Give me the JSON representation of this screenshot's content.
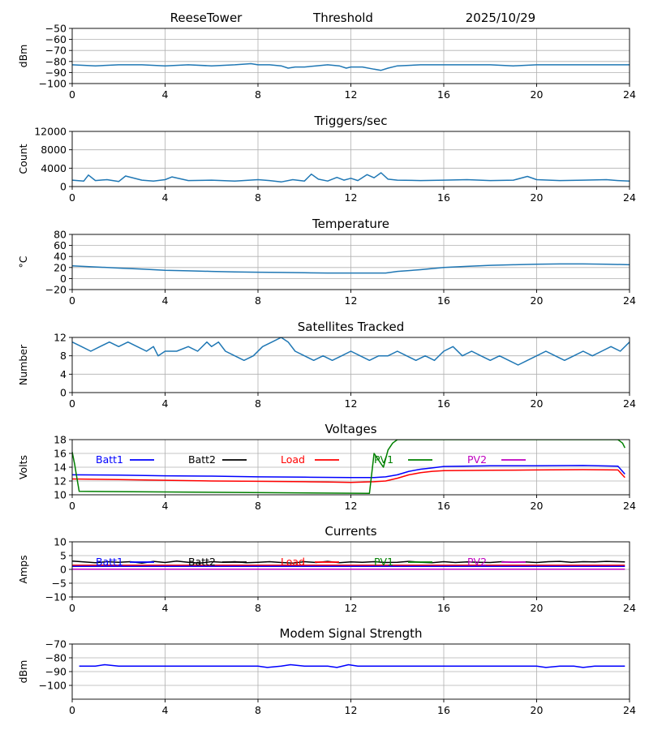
{
  "header": {
    "station": "ReeseTower",
    "mode": "Threshold",
    "date": "2025/10/29"
  },
  "chart_data": [
    {
      "type": "line",
      "title": "Threshold",
      "ylabel": "dBm",
      "xlim": [
        0,
        24
      ],
      "xticks": [
        "0",
        "4",
        "8",
        "12",
        "16",
        "20",
        "24"
      ],
      "ylim": [
        -100,
        -50
      ],
      "yticks": [
        "−100",
        "−90",
        "−80",
        "−70",
        "−60",
        "−50"
      ],
      "ytick_values": [
        -100,
        -90,
        -80,
        -70,
        -60,
        -50
      ],
      "grid": true,
      "series": [
        {
          "name": "threshold",
          "color": "#1f77b4",
          "x": [
            0,
            1,
            2,
            3,
            4,
            5,
            6,
            7,
            7.7,
            8,
            8.5,
            9,
            9.3,
            9.6,
            10,
            10.5,
            11,
            11.5,
            11.8,
            12,
            12.5,
            13,
            13.3,
            13.6,
            14,
            15,
            16,
            17,
            18,
            19,
            20,
            21,
            22,
            23,
            24
          ],
          "y": [
            -83,
            -84,
            -83,
            -83,
            -84,
            -83,
            -84,
            -83,
            -82,
            -83,
            -83,
            -84,
            -86,
            -85,
            -85,
            -84,
            -83,
            -84,
            -86,
            -85,
            -85,
            -87,
            -88,
            -86,
            -84,
            -83,
            -83,
            -83,
            -83,
            -84,
            -83,
            -83,
            -83,
            -83,
            -83
          ]
        }
      ]
    },
    {
      "type": "line",
      "title": "Triggers/sec",
      "ylabel": "Count",
      "xlim": [
        0,
        24
      ],
      "xticks": [
        "0",
        "4",
        "8",
        "12",
        "16",
        "20",
        "24"
      ],
      "ylim": [
        0,
        12000
      ],
      "yticks": [
        "0",
        "4000",
        "8000",
        "12000"
      ],
      "ytick_values": [
        0,
        4000,
        8000,
        12000
      ],
      "grid": true,
      "series": [
        {
          "name": "triggers",
          "color": "#1f77b4",
          "x": [
            0,
            0.5,
            0.7,
            1,
            1.5,
            2,
            2.3,
            3,
            3.5,
            4,
            4.3,
            5,
            6,
            7,
            8,
            8.5,
            9,
            9.5,
            10,
            10.3,
            10.6,
            11,
            11.4,
            11.7,
            12,
            12.3,
            12.7,
            13,
            13.3,
            13.6,
            14,
            15,
            16,
            17,
            18,
            19,
            19.6,
            20,
            21,
            22,
            23,
            23.5,
            24
          ],
          "y": [
            1400,
            1200,
            2500,
            1300,
            1500,
            1100,
            2300,
            1400,
            1200,
            1500,
            2100,
            1300,
            1400,
            1200,
            1500,
            1300,
            1000,
            1500,
            1200,
            2700,
            1600,
            1200,
            2000,
            1400,
            1800,
            1300,
            2600,
            1900,
            3000,
            1600,
            1400,
            1300,
            1400,
            1500,
            1300,
            1400,
            2200,
            1500,
            1300,
            1400,
            1500,
            1300,
            1200
          ]
        }
      ]
    },
    {
      "type": "line",
      "title": "Temperature",
      "ylabel": "°C",
      "xlim": [
        0,
        24
      ],
      "xticks": [
        "0",
        "4",
        "8",
        "12",
        "16",
        "20",
        "24"
      ],
      "ylim": [
        -20,
        80
      ],
      "yticks": [
        "−20",
        "0",
        "20",
        "40",
        "60",
        "80"
      ],
      "ytick_values": [
        -20,
        0,
        20,
        40,
        60,
        80
      ],
      "grid": true,
      "series": [
        {
          "name": "temperature",
          "color": "#1f77b4",
          "x": [
            0,
            1,
            2,
            3,
            4,
            5,
            6,
            7,
            8,
            9,
            10,
            11,
            12,
            13,
            13.5,
            14,
            15,
            16,
            17,
            18,
            19,
            20,
            21,
            22,
            23,
            24
          ],
          "y": [
            23,
            21,
            19,
            17,
            15,
            14,
            13,
            12,
            11.5,
            11,
            10.5,
            10,
            10,
            10,
            10,
            13,
            16,
            20,
            22,
            24,
            25,
            26,
            26.5,
            26.5,
            26,
            25
          ]
        }
      ]
    },
    {
      "type": "line",
      "title": "Satellites Tracked",
      "ylabel": "Number",
      "xlim": [
        0,
        24
      ],
      "xticks": [
        "0",
        "4",
        "8",
        "12",
        "16",
        "20",
        "24"
      ],
      "ylim": [
        0,
        12
      ],
      "yticks": [
        "0",
        "4",
        "8",
        "12"
      ],
      "ytick_values": [
        0,
        4,
        8,
        12
      ],
      "grid": true,
      "series": [
        {
          "name": "satellites",
          "color": "#1f77b4",
          "x": [
            0,
            0.4,
            0.8,
            1.2,
            1.6,
            2,
            2.4,
            2.8,
            3.2,
            3.5,
            3.7,
            4,
            4.5,
            5,
            5.4,
            5.8,
            6,
            6.3,
            6.6,
            7,
            7.4,
            7.8,
            8.2,
            8.6,
            9,
            9.3,
            9.6,
            10,
            10.4,
            10.8,
            11.2,
            11.6,
            12,
            12.4,
            12.8,
            13.2,
            13.6,
            14,
            14.4,
            14.8,
            15.2,
            15.6,
            16,
            16.4,
            16.8,
            17.2,
            17.6,
            18,
            18.4,
            18.8,
            19.2,
            19.6,
            20,
            20.4,
            20.8,
            21.2,
            21.6,
            22,
            22.4,
            22.8,
            23.2,
            23.6,
            24
          ],
          "y": [
            11,
            10,
            9,
            10,
            11,
            10,
            11,
            10,
            9,
            10,
            8,
            9,
            9,
            10,
            9,
            11,
            10,
            11,
            9,
            8,
            7,
            8,
            10,
            11,
            12,
            11,
            9,
            8,
            7,
            8,
            7,
            8,
            9,
            8,
            7,
            8,
            8,
            9,
            8,
            7,
            8,
            7,
            9,
            10,
            8,
            9,
            8,
            7,
            8,
            7,
            6,
            7,
            8,
            9,
            8,
            7,
            8,
            9,
            8,
            9,
            10,
            9,
            11
          ]
        }
      ]
    },
    {
      "type": "line",
      "title": "Voltages",
      "ylabel": "Volts",
      "xlim": [
        0,
        24
      ],
      "xticks": [
        "0",
        "4",
        "8",
        "12",
        "16",
        "20",
        "24"
      ],
      "ylim": [
        10,
        18
      ],
      "yticks": [
        "10",
        "12",
        "14",
        "16",
        "18"
      ],
      "ytick_values": [
        10,
        12,
        14,
        16,
        18
      ],
      "grid": true,
      "legend": [
        "Batt1",
        "Batt2",
        "Load",
        "PV1",
        "PV2"
      ],
      "series": [
        {
          "name": "Batt1",
          "color": "#0000ff",
          "x": [
            0,
            2,
            4,
            6,
            8,
            10,
            12,
            13,
            13.5,
            14,
            14.5,
            15,
            15.5,
            16,
            18,
            20,
            22,
            23.5,
            23.8
          ],
          "y": [
            12.9,
            12.85,
            12.75,
            12.7,
            12.6,
            12.55,
            12.5,
            12.5,
            12.6,
            12.9,
            13.4,
            13.7,
            13.9,
            14.1,
            14.2,
            14.2,
            14.25,
            14.15,
            13.0
          ]
        },
        {
          "name": "Load",
          "color": "#ff0000",
          "x": [
            0,
            2,
            4,
            6,
            8,
            10,
            11,
            12,
            13,
            13.5,
            14,
            14.5,
            15,
            15.5,
            16,
            18,
            20,
            22,
            23.5,
            23.8
          ],
          "y": [
            12.3,
            12.2,
            12.1,
            12.0,
            11.95,
            11.9,
            11.85,
            11.8,
            11.9,
            12.0,
            12.4,
            12.9,
            13.2,
            13.4,
            13.5,
            13.55,
            13.6,
            13.65,
            13.6,
            12.5
          ]
        },
        {
          "name": "PV1",
          "color": "#008000",
          "x": [
            0,
            0.1,
            0.2,
            0.3,
            12.8,
            13.0,
            13.2,
            13.4,
            13.6,
            13.8,
            14.0,
            23.5,
            23.7,
            23.8
          ],
          "y": [
            16.2,
            14.5,
            12.5,
            10.5,
            10.2,
            16.0,
            15.0,
            14.0,
            16.5,
            17.5,
            18.0,
            18.0,
            17.5,
            16.8
          ]
        }
      ]
    },
    {
      "type": "line",
      "title": "Currents",
      "ylabel": "Amps",
      "xlim": [
        0,
        24
      ],
      "xticks": [
        "0",
        "4",
        "8",
        "12",
        "16",
        "20",
        "24"
      ],
      "ylim": [
        -10,
        10
      ],
      "yticks": [
        "−10",
        "−5",
        "0",
        "5",
        "10"
      ],
      "ytick_values": [
        -10,
        -5,
        0,
        5,
        10
      ],
      "grid": true,
      "legend": [
        "Batt1",
        "Batt2",
        "Load",
        "PV1",
        "PV2"
      ],
      "series": [
        {
          "name": "Batt2",
          "color": "#000000",
          "x": [
            0,
            0.5,
            1,
            1.5,
            2,
            2.5,
            3,
            3.5,
            4,
            4.5,
            5,
            5.5,
            6,
            6.5,
            7,
            7.5,
            8,
            8.5,
            9,
            9.5,
            10,
            10.5,
            11,
            11.5,
            12,
            12.5,
            13,
            13.5,
            14,
            14.5,
            15,
            15.5,
            16,
            16.5,
            17,
            17.5,
            18,
            18.5,
            19,
            19.5,
            20,
            20.5,
            21,
            21.5,
            22,
            22.5,
            23,
            23.5,
            23.8
          ],
          "y": [
            3.0,
            2.7,
            2.4,
            2.8,
            2.6,
            2.8,
            2.3,
            2.9,
            2.5,
            3.0,
            2.6,
            2.3,
            2.8,
            2.6,
            2.8,
            2.4,
            2.6,
            2.8,
            2.5,
            2.3,
            2.8,
            2.5,
            2.9,
            2.4,
            2.7,
            2.6,
            2.8,
            2.5,
            2.6,
            2.9,
            2.6,
            2.4,
            2.8,
            2.5,
            2.7,
            2.6,
            2.5,
            2.8,
            2.6,
            2.7,
            2.5,
            2.8,
            2.9,
            2.6,
            2.8,
            2.7,
            2.9,
            2.8,
            2.7
          ]
        },
        {
          "name": "Load",
          "color": "#ff0000",
          "x": [
            0,
            23.8
          ],
          "y": [
            1.5,
            1.5
          ]
        },
        {
          "name": "Batt1",
          "color": "#0000ff",
          "x": [
            0,
            23.8
          ],
          "y": [
            1.1,
            1.1
          ]
        },
        {
          "name": "PV2",
          "color": "#bf00bf",
          "x": [
            0,
            23.8
          ],
          "y": [
            0.1,
            0.1
          ]
        }
      ]
    },
    {
      "type": "line",
      "title": "Modem Signal Strength",
      "ylabel": "dBm",
      "xlim": [
        0,
        24
      ],
      "xticks": [
        "0",
        "4",
        "8",
        "12",
        "16",
        "20",
        "24"
      ],
      "ylim": [
        -110,
        -70
      ],
      "yticks": [
        "−100",
        "−90",
        "−80",
        "−70"
      ],
      "ytick_values": [
        -100,
        -90,
        -80,
        -70
      ],
      "grid": true,
      "series": [
        {
          "name": "modem",
          "color": "#0000ff",
          "x": [
            0.3,
            1,
            1.4,
            2,
            3,
            4,
            5,
            6,
            7,
            7.5,
            8,
            8.4,
            9,
            9.4,
            10,
            10.6,
            11,
            11.4,
            11.9,
            12.3,
            13,
            14,
            15,
            16,
            17,
            18,
            19,
            20,
            20.4,
            21,
            21.6,
            22,
            22.5,
            23,
            23.8
          ],
          "y": [
            -86,
            -86,
            -85,
            -86,
            -86,
            -86,
            -86,
            -86,
            -86,
            -86,
            -86,
            -87,
            -86,
            -85,
            -86,
            -86,
            -86,
            -87,
            -85,
            -86,
            -86,
            -86,
            -86,
            -86,
            -86,
            -86,
            -86,
            -86,
            -87,
            -86,
            -86,
            -87,
            -86,
            -86,
            -86
          ]
        }
      ]
    }
  ]
}
